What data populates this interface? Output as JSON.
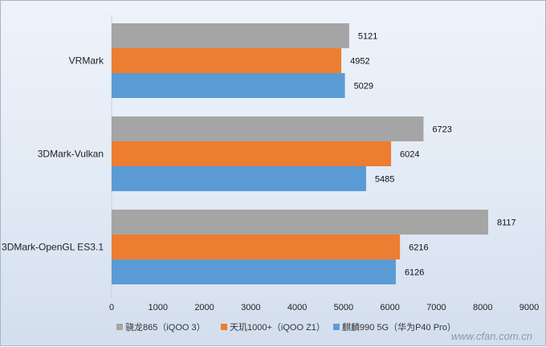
{
  "chart_data": {
    "type": "bar",
    "orientation": "horizontal",
    "categories": [
      "VRMark",
      "3DMark-Vulkan",
      "3DMark-OpenGL ES3.1"
    ],
    "series": [
      {
        "name": "骁龙865（iQOO 3）",
        "color": "#a5a5a5",
        "values": [
          5121,
          6723,
          8117
        ]
      },
      {
        "name": "天玑1000+（iQOO Z1）",
        "color": "#ed7d31",
        "values": [
          4952,
          6024,
          6216
        ]
      },
      {
        "name": "麒麟990 5G（华为P40 Pro）",
        "color": "#5b9bd5",
        "values": [
          5029,
          5485,
          6126
        ]
      }
    ],
    "xlim": [
      0,
      9000
    ],
    "xticks": [
      0,
      1000,
      2000,
      3000,
      4000,
      5000,
      6000,
      7000,
      8000,
      9000
    ],
    "title": "",
    "xlabel": "",
    "ylabel": "",
    "grid": false,
    "legend_position": "bottom"
  },
  "watermark": "www.cfan.com.cn"
}
